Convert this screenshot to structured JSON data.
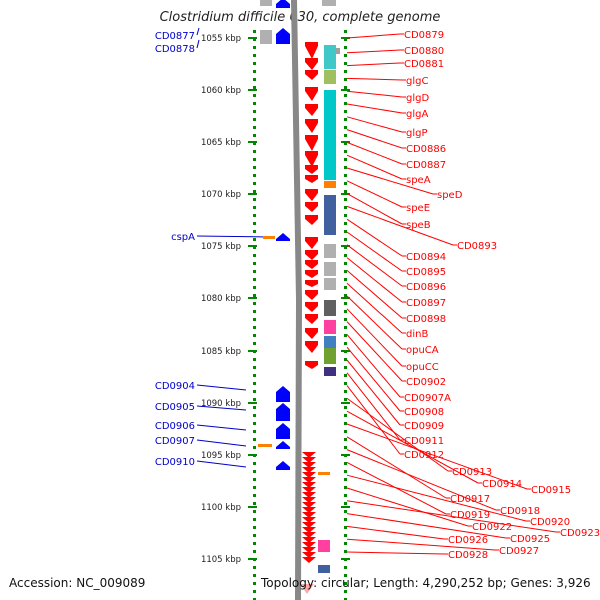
{
  "title": "Clostridium difficile 630, complete genome",
  "footer": {
    "accession": "Accession: NC_009089",
    "topology": "Topology: circular; Length: 4,290,252 bp; Genes: 3,926"
  },
  "colors": {
    "plus_strand": "#ff0000",
    "minus_strand": "#0000ff",
    "label_red": "#ff0000",
    "label_blue": "#0000cc",
    "ruler_dots": "#008800",
    "genome_line": "#888888"
  },
  "ruler": {
    "ticks": [
      "1055 kbp",
      "1060 kbp",
      "1065 kbp",
      "1070 kbp",
      "1075 kbp",
      "1080 kbp",
      "1085 kbp",
      "1090 kbp",
      "1095 kbp",
      "1100 kbp",
      "1105 kbp"
    ]
  },
  "genes_left": [
    "CD0877",
    "CD0878",
    "cspA",
    "CD0904",
    "CD0905",
    "CD0906",
    "CD0907",
    "CD0910"
  ],
  "genes_right": [
    "CD0879",
    "CD0880",
    "CD0881",
    "glgC",
    "glgD",
    "glgA",
    "glgP",
    "CD0886",
    "CD0887",
    "speA",
    "speD",
    "speE",
    "speB",
    "CD0893",
    "CD0894",
    "CD0895",
    "CD0896",
    "CD0897",
    "CD0898",
    "dinB",
    "opuCA",
    "opuCC",
    "CD0902",
    "CD0907A",
    "CD0908",
    "CD0909",
    "CD0911",
    "CD0912",
    "CD0913",
    "CD0914",
    "CD0915",
    "CD0917",
    "CD0918",
    "CD0919",
    "CD0920",
    "CD0922",
    "CD0923",
    "CD0925",
    "CD0926",
    "CD0927",
    "CD0928"
  ]
}
